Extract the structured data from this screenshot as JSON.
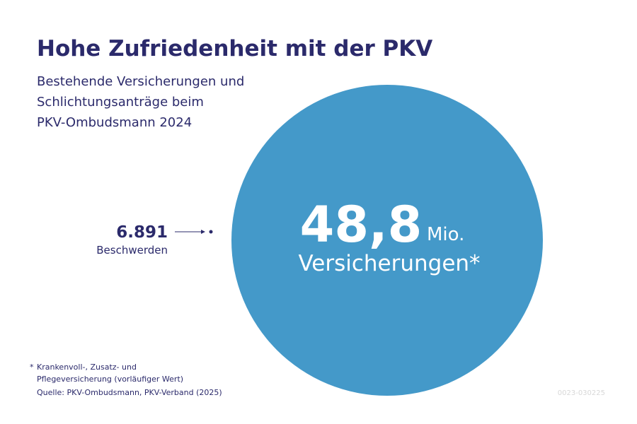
{
  "header": {
    "title": "Hohe Zufriedenheit mit der PKV",
    "subtitle": [
      "Bestehende Versicherungen und",
      "Schlichtungsanträge beim",
      "PKV-Ombudsmann 2024"
    ]
  },
  "circle": {
    "number": "48,8",
    "unit": "Mio.",
    "label": "Versicherungen*"
  },
  "complaints": {
    "number": "6.891",
    "label": "Beschwerden"
  },
  "footnote": {
    "marker": "*",
    "lines": [
      "Krankenvoll-, Zusatz- und",
      "Pflegeversicherung (vorläufiger Wert)"
    ]
  },
  "source": "Quelle: PKV-Ombudsmann, PKV-Verband (2025)",
  "code": "0023-030225"
}
